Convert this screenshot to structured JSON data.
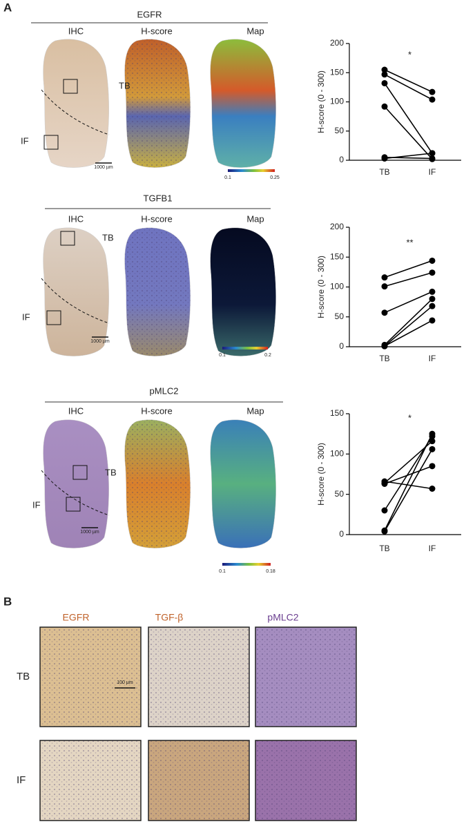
{
  "panel_a_label": "A",
  "panel_b_label": "B",
  "panel_a": [
    {
      "marker": "EGFR",
      "columns": [
        "IHC",
        "H-score",
        "Map"
      ],
      "tb_label": "TB",
      "if_label": "IF",
      "scale_bar": "1000 µm",
      "colorbar_min": 0.1,
      "colorbar_max": 0.25
    },
    {
      "marker": "TGFB1",
      "columns": [
        "IHC",
        "H-score",
        "Map"
      ],
      "tb_label": "TB",
      "if_label": "IF",
      "scale_bar": "1000 µm",
      "colorbar_min": 0.1,
      "colorbar_max": 0.2
    },
    {
      "marker": "pMLC2",
      "columns": [
        "IHC",
        "H-score",
        "Map"
      ],
      "tb_label": "TB",
      "if_label": "IF",
      "scale_bar": "1000 µm",
      "colorbar_min": 0.1,
      "colorbar_max": 0.18
    }
  ],
  "chart_data": [
    {
      "type": "line",
      "ylabel": "H-score (0 - 300)",
      "annotation": "*",
      "categories": [
        "TB",
        "IF"
      ],
      "ylim": [
        0,
        200
      ],
      "yticks": [
        0,
        50,
        100,
        150,
        200
      ],
      "color": "#000000",
      "series": [
        {
          "values": [
            155,
            117
          ]
        },
        {
          "values": [
            147,
            104
          ]
        },
        {
          "values": [
            132,
            12
          ]
        },
        {
          "values": [
            92,
            2
          ]
        },
        {
          "values": [
            5,
            3
          ]
        },
        {
          "values": [
            3,
            12
          ]
        }
      ]
    },
    {
      "type": "line",
      "ylabel": "H-score (0 - 300)",
      "annotation": "**",
      "categories": [
        "TB",
        "IF"
      ],
      "ylim": [
        0,
        200
      ],
      "yticks": [
        0,
        50,
        100,
        150,
        200
      ],
      "color": "#000000",
      "series": [
        {
          "values": [
            116,
            144
          ]
        },
        {
          "values": [
            101,
            124
          ]
        },
        {
          "values": [
            57,
            92
          ]
        },
        {
          "values": [
            3,
            80
          ]
        },
        {
          "values": [
            1,
            68
          ]
        },
        {
          "values": [
            1,
            44
          ]
        }
      ]
    },
    {
      "type": "line",
      "ylabel": "H-score (0 - 300)",
      "annotation": "*",
      "categories": [
        "TB",
        "IF"
      ],
      "ylim": [
        0,
        150
      ],
      "yticks": [
        0,
        50,
        100,
        150
      ],
      "color": "#000000",
      "series": [
        {
          "values": [
            66,
            57
          ]
        },
        {
          "values": [
            64,
            116
          ]
        },
        {
          "values": [
            63,
            85
          ]
        },
        {
          "values": [
            30,
            122
          ]
        },
        {
          "values": [
            5,
            125
          ]
        },
        {
          "values": [
            4,
            106
          ]
        }
      ]
    }
  ],
  "panel_b": {
    "columns": [
      "EGFR",
      "TGF-β",
      "pMLC2"
    ],
    "rows": [
      "TB",
      "IF"
    ],
    "scale_bar": "100 µm"
  }
}
